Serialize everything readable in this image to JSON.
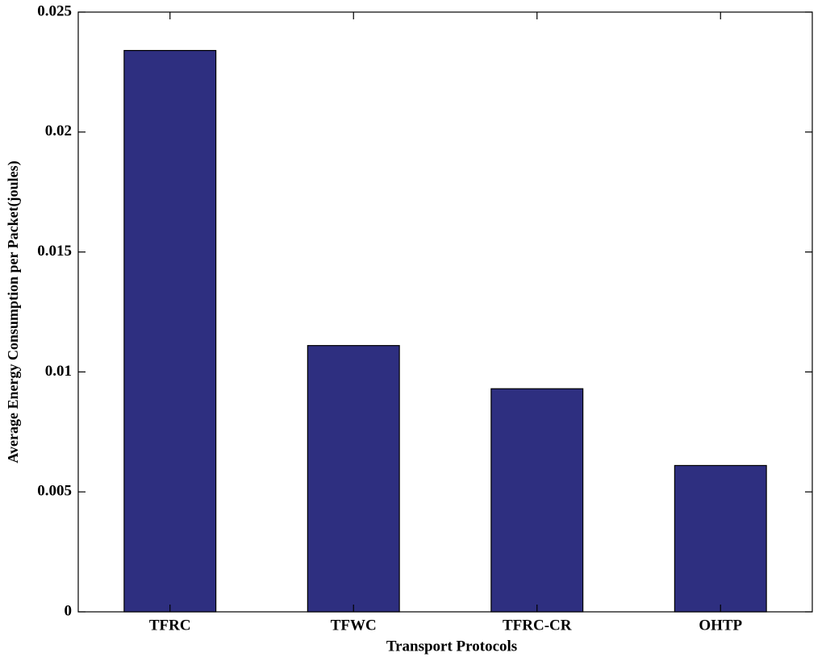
{
  "chart_data": {
    "type": "bar",
    "xlabel": "Transport Protocols",
    "ylabel": "Average Energy Consumption per Packet(joules)",
    "categories": [
      "TFRC",
      "TFWC",
      "TFRC-CR",
      "OHTP"
    ],
    "values": [
      0.0234,
      0.0111,
      0.0093,
      0.0061
    ],
    "color": "#2e2f80",
    "ylim": [
      0,
      0.025
    ],
    "yticks": [
      0,
      0.005,
      0.01,
      0.015,
      0.02,
      0.025
    ],
    "grid": false
  }
}
